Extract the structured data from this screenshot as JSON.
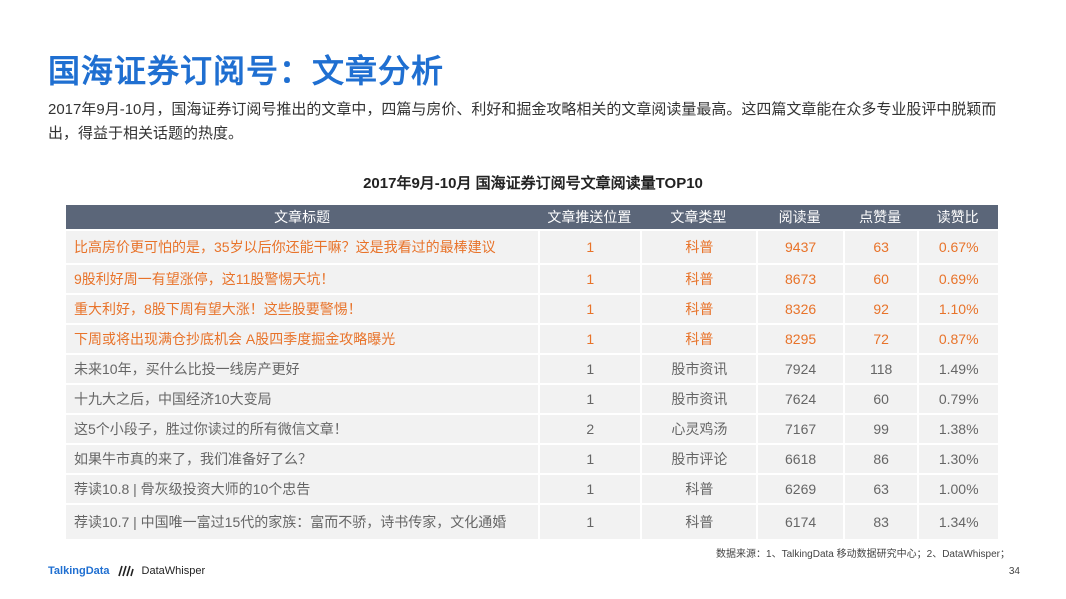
{
  "title": "国海证券订阅号：文章分析",
  "intro": "2017年9月-10月，国海证券订阅号推出的文章中，四篇与房价、利好和掘金攻略相关的文章阅读量最高。这四篇文章能在众多专业股评中脱颖而出，得益于相关话题的热度。",
  "table_title": "2017年9月-10月 国海证券订阅号文章阅读量TOP10",
  "headers": [
    "文章标题",
    "文章推送位置",
    "文章类型",
    "阅读量",
    "点赞量",
    "读赞比"
  ],
  "rows": [
    {
      "title": "比高房价更可怕的是，35岁以后你还能干嘛？这是我看过的最棒建议",
      "pos": "1",
      "type": "科普",
      "reads": "9437",
      "likes": "63",
      "ratio": "0.67%"
    },
    {
      "title": "9股利好周一有望涨停，这11股警惕天坑！",
      "pos": "1",
      "type": "科普",
      "reads": "8673",
      "likes": "60",
      "ratio": "0.69%"
    },
    {
      "title": "重大利好，8股下周有望大涨！这些股要警惕！",
      "pos": "1",
      "type": "科普",
      "reads": "8326",
      "likes": "92",
      "ratio": "1.10%"
    },
    {
      "title": "下周或将出现满仓抄底机会 A股四季度掘金攻略曝光",
      "pos": "1",
      "type": "科普",
      "reads": "8295",
      "likes": "72",
      "ratio": "0.87%"
    },
    {
      "title": "未来10年，买什么比投一线房产更好",
      "pos": "1",
      "type": "股市资讯",
      "reads": "7924",
      "likes": "118",
      "ratio": "1.49%"
    },
    {
      "title": "十九大之后，中国经济10大变局",
      "pos": "1",
      "type": "股市资讯",
      "reads": "7624",
      "likes": "60",
      "ratio": "0.79%"
    },
    {
      "title": "这5个小段子，胜过你读过的所有微信文章！",
      "pos": "2",
      "type": "心灵鸡汤",
      "reads": "7167",
      "likes": "99",
      "ratio": "1.38%"
    },
    {
      "title": "如果牛市真的来了，我们准备好了么？",
      "pos": "1",
      "type": "股市评论",
      "reads": "6618",
      "likes": "86",
      "ratio": "1.30%"
    },
    {
      "title": "荐读10.8 | 骨灰级投资大师的10个忠告",
      "pos": "1",
      "type": "科普",
      "reads": "6269",
      "likes": "63",
      "ratio": "1.00%"
    },
    {
      "title": "荐读10.7 | 中国唯一富过15代的家族：富而不骄，诗书传家，文化通婚",
      "pos": "1",
      "type": "科普",
      "reads": "6174",
      "likes": "83",
      "ratio": "1.34%"
    }
  ],
  "source": "数据来源：1、TalkingData 移动数据研究中心；2、DataWhisper；",
  "footer": {
    "brand1": "TalkingData",
    "brand2": "DataWhisper"
  },
  "page_number": "34",
  "colors": {
    "title": "#1f6fd1",
    "header_bg": "#5b6679",
    "highlight": "#e8732a",
    "row_bg": "#f2f2f2"
  }
}
